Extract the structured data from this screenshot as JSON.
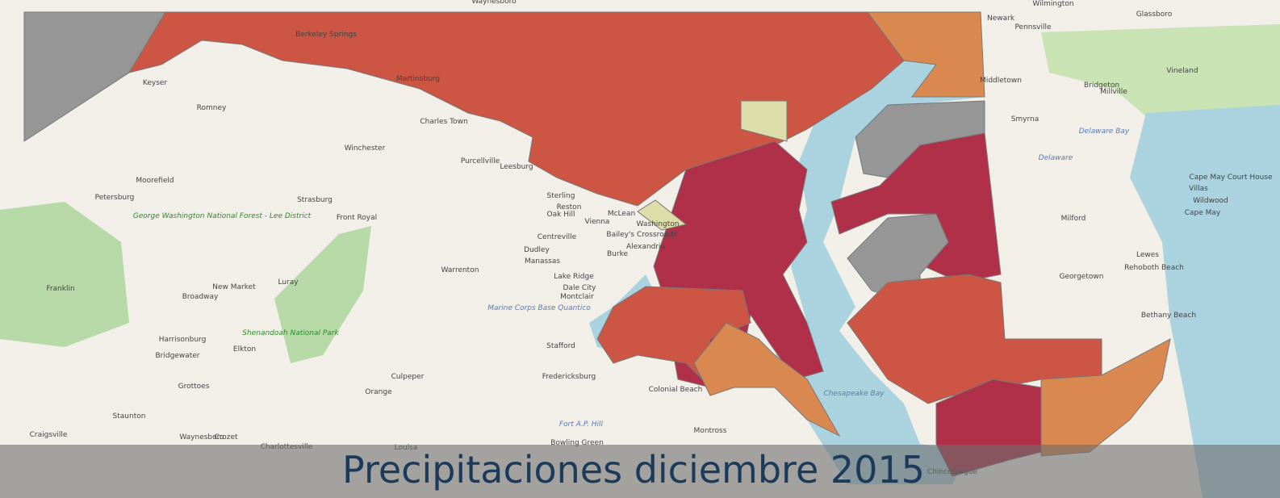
{
  "title": "Precipitaciones diciembre 2015",
  "places": [
    "Waynesboro",
    "Wilmington",
    "Newark",
    "Glassboro",
    "Pennsville",
    "Vineland",
    "Bridgeton",
    "Millville",
    "Middletown",
    "Smyrna",
    "Delaware Bay",
    "Delaware",
    "Berkeley Springs",
    "Keyser",
    "Romney",
    "Martinsburg",
    "Charles Town",
    "Winchester",
    "Purcellville",
    "Leesburg",
    "Moorefield",
    "Petersburg",
    "George Washington National Forest - Lee District",
    "Strasburg",
    "Front Royal",
    "Sterling",
    "Reston",
    "Oak Hill",
    "Centreville",
    "Vienna",
    "McLean",
    "Washington",
    "Alexandria",
    "Bailey's Crossroads",
    "Burke",
    "Dudley",
    "Manassas",
    "Lake Ridge",
    "Dale City",
    "Montclair",
    "Warrenton",
    "Luray",
    "New Market",
    "Broadway",
    "Franklin",
    "Harrisonburg",
    "Bridgewater",
    "Elkton",
    "Shenandoah National Park",
    "Culpeper",
    "Marine Corps Base Quantico",
    "Stafford",
    "Fredericksburg",
    "Colonial Beach",
    "Orange",
    "Grottoes",
    "Staunton",
    "Waynesboro",
    "Crozet",
    "Charlottesville",
    "Craigsville",
    "Louisa",
    "Bowling Green",
    "Fort A.P. Hill",
    "Montross",
    "Chesapeake Bay",
    "Chincoteague",
    "Milford",
    "Georgetown",
    "Lewes",
    "Rehoboth Beach",
    "Bethany Beach",
    "Cape May",
    "Wildwood",
    "Cape May Court House",
    "Villas"
  ]
}
